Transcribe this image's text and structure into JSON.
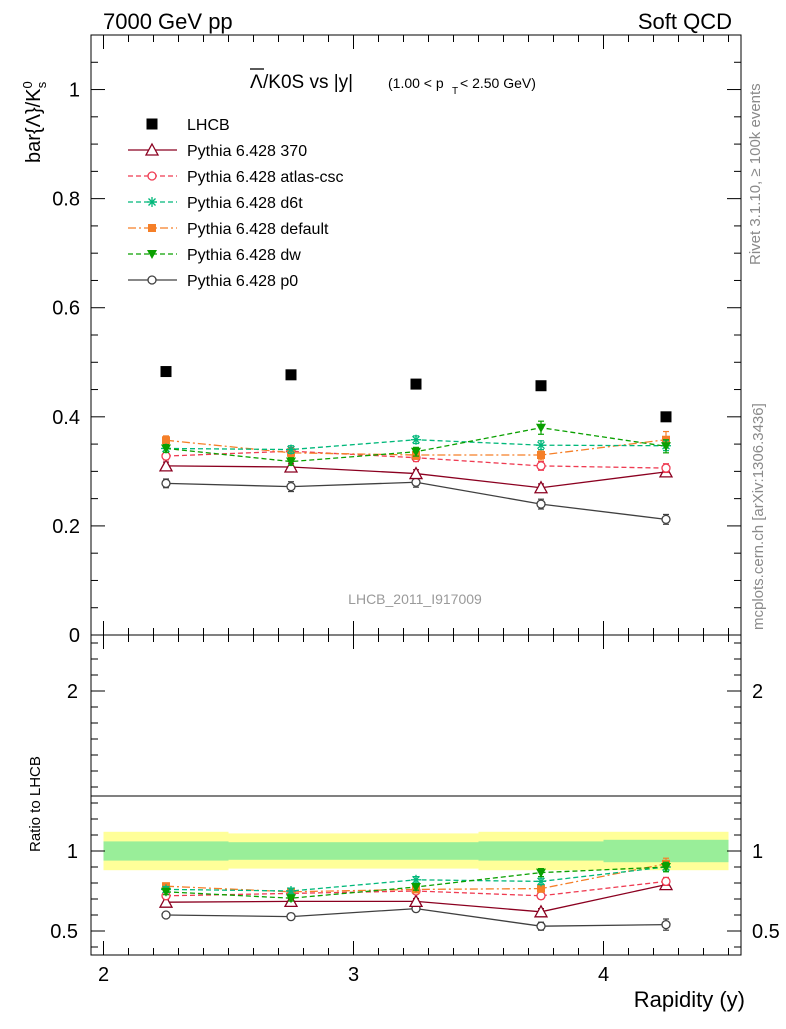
{
  "header": {
    "left": "7000 GeV pp",
    "right": "Soft QCD"
  },
  "side_labels": {
    "rivet": "Rivet 3.1.10, ≥ 100k events",
    "mcplots": "mcplots.cern.ch [arXiv:1306.3436]"
  },
  "plot_title": {
    "main": "/K0S vs |y|",
    "lambda_bar": "Λ",
    "range_open": "(1.00 < p",
    "range_sub": "T",
    "range_close": " < 2.50 GeV)"
  },
  "watermark": "LHCB_2011_I917009",
  "y_label_main": {
    "base": "bar{Λ}/K",
    "sup": "0",
    "sub": "s"
  },
  "y_label_ratio": "Ratio to LHCB",
  "x_label": "Rapidity (y)",
  "colors": {
    "data": "#000000",
    "p370": "#8b0020",
    "atlas": "#ef3b52",
    "d6t": "#00b87a",
    "default": "#f57f28",
    "dw": "#0aa000",
    "p0": "#404040",
    "band_inner": "#99ee99",
    "band_outer": "#ffff99"
  },
  "chart_data": [
    {
      "type": "scatter",
      "panel": "main",
      "x": [
        2.25,
        2.75,
        3.25,
        3.75,
        4.25
      ],
      "xlim": [
        1.95,
        4.55
      ],
      "ylim": [
        0.0,
        1.1
      ],
      "yticks": [
        "0",
        "0.2",
        "0.4",
        "0.6",
        "0.8",
        "1"
      ],
      "series": [
        {
          "name": "LHCB",
          "key": "data",
          "marker": "square",
          "style": "none",
          "values": [
            0.483,
            0.477,
            0.46,
            0.457,
            0.4
          ],
          "errors": [
            0,
            0,
            0,
            0,
            0
          ]
        },
        {
          "name": "Pythia 6.428 370",
          "key": "p370",
          "marker": "triangle-open",
          "style": "solid",
          "values": [
            0.31,
            0.308,
            0.296,
            0.27,
            0.299
          ],
          "errors": [
            0.007,
            0.007,
            0.007,
            0.007,
            0.007
          ]
        },
        {
          "name": "Pythia 6.428 atlas-csc",
          "key": "atlas",
          "marker": "circle-open",
          "style": "dashed",
          "values": [
            0.328,
            0.337,
            0.325,
            0.31,
            0.306
          ],
          "errors": [
            0.007,
            0.007,
            0.007,
            0.008,
            0.008
          ]
        },
        {
          "name": "Pythia 6.428 d6t",
          "key": "d6t",
          "marker": "star",
          "style": "dashed",
          "values": [
            0.342,
            0.34,
            0.358,
            0.348,
            0.347
          ],
          "errors": [
            0.007,
            0.007,
            0.007,
            0.008,
            0.009
          ]
        },
        {
          "name": "Pythia 6.428 default",
          "key": "default",
          "marker": "square-small",
          "style": "dashdot",
          "values": [
            0.357,
            0.334,
            0.33,
            0.33,
            0.358
          ],
          "errors": [
            0.008,
            0.008,
            0.008,
            0.009,
            0.015
          ]
        },
        {
          "name": "Pythia 6.428 dw",
          "key": "dw",
          "marker": "triangle-down",
          "style": "dashed",
          "values": [
            0.342,
            0.318,
            0.336,
            0.38,
            0.346
          ],
          "errors": [
            0.007,
            0.007,
            0.008,
            0.012,
            0.012
          ]
        },
        {
          "name": "Pythia 6.428 p0",
          "key": "p0",
          "marker": "circle-open",
          "style": "solid",
          "values": [
            0.278,
            0.272,
            0.28,
            0.24,
            0.212
          ],
          "errors": [
            0.008,
            0.009,
            0.009,
            0.009,
            0.009
          ]
        }
      ]
    },
    {
      "type": "scatter",
      "panel": "ratio",
      "x": [
        2.25,
        2.75,
        3.25,
        3.75,
        4.25
      ],
      "xlim": [
        1.95,
        4.55
      ],
      "ylim": [
        0.35,
        2.35
      ],
      "yticks": [
        "0.5",
        "1",
        "2"
      ],
      "xticks": [
        "2",
        "3",
        "4"
      ],
      "band": {
        "bins": [
          [
            2.0,
            2.5
          ],
          [
            2.5,
            3.5
          ],
          [
            3.5,
            4.0
          ],
          [
            4.0,
            4.5
          ]
        ],
        "inner": [
          [
            0.94,
            1.06
          ],
          [
            0.945,
            1.055
          ],
          [
            0.94,
            1.06
          ],
          [
            0.93,
            1.07
          ]
        ],
        "outer": [
          [
            0.88,
            1.12
          ],
          [
            0.89,
            1.11
          ],
          [
            0.88,
            1.12
          ],
          [
            0.88,
            1.12
          ]
        ]
      },
      "series": [
        {
          "name": "Pythia 6.428 370",
          "key": "p370",
          "values": [
            0.68,
            0.685,
            0.685,
            0.62,
            0.79
          ],
          "errors": [
            0.018,
            0.018,
            0.018,
            0.02,
            0.02
          ]
        },
        {
          "name": "Pythia 6.428 atlas-csc",
          "key": "atlas",
          "values": [
            0.72,
            0.735,
            0.75,
            0.72,
            0.81
          ],
          "errors": [
            0.018,
            0.018,
            0.018,
            0.02,
            0.025
          ]
        },
        {
          "name": "Pythia 6.428 d6t",
          "key": "d6t",
          "values": [
            0.76,
            0.75,
            0.82,
            0.81,
            0.9
          ],
          "errors": [
            0.018,
            0.018,
            0.02,
            0.02,
            0.025
          ]
        },
        {
          "name": "Pythia 6.428 default",
          "key": "default",
          "values": [
            0.78,
            0.745,
            0.76,
            0.765,
            0.92
          ],
          "errors": [
            0.02,
            0.02,
            0.02,
            0.022,
            0.035
          ]
        },
        {
          "name": "Pythia 6.428 dw",
          "key": "dw",
          "values": [
            0.745,
            0.705,
            0.775,
            0.865,
            0.9
          ],
          "errors": [
            0.018,
            0.018,
            0.02,
            0.025,
            0.03
          ]
        },
        {
          "name": "Pythia 6.428 p0",
          "key": "p0",
          "values": [
            0.6,
            0.59,
            0.64,
            0.53,
            0.54
          ],
          "errors": [
            0.018,
            0.02,
            0.02,
            0.025,
            0.035
          ]
        }
      ]
    }
  ]
}
